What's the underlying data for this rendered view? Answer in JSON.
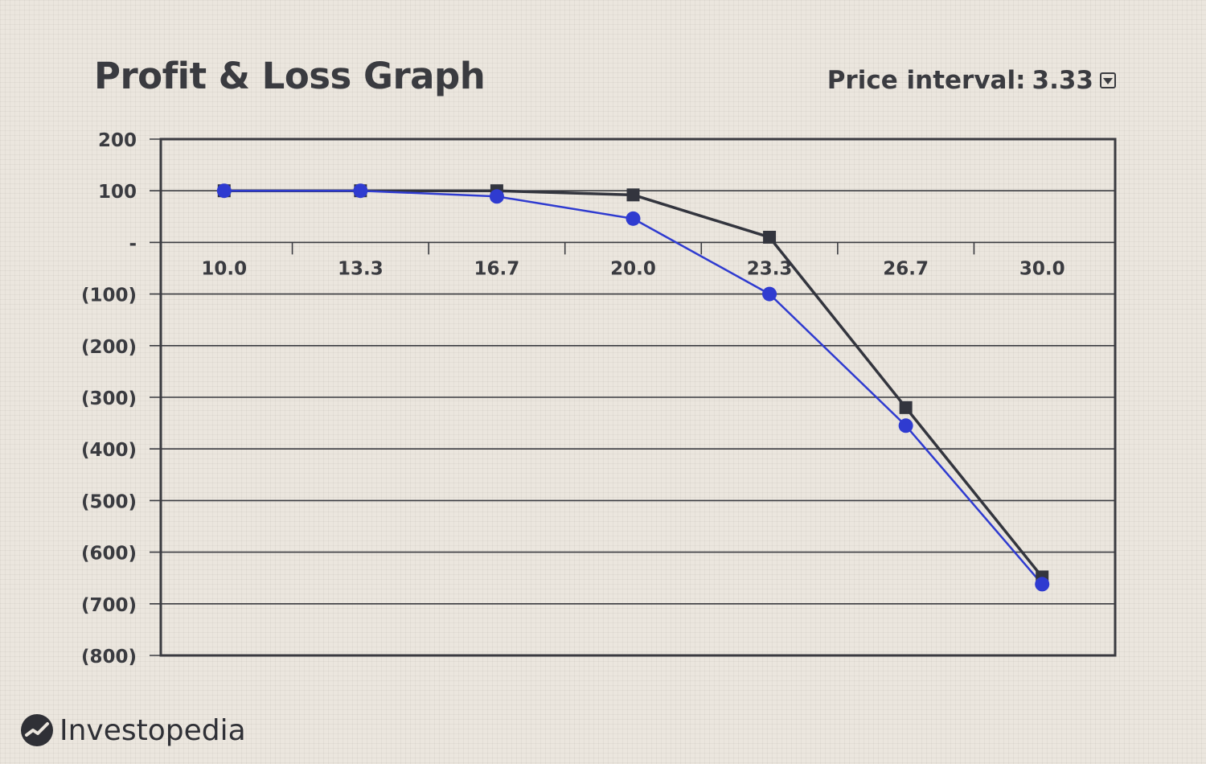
{
  "title": "Profit & Loss Graph",
  "controls": {
    "interval_label": "Price interval:",
    "interval_value": "3.33"
  },
  "brand": {
    "name": "Investopedia"
  },
  "colors": {
    "series_dark": "#33353e",
    "series_blue": "#2f3bd0",
    "grid": "#3a3b40"
  },
  "chart_data": {
    "type": "line",
    "title": "",
    "xlabel": "",
    "ylabel": "",
    "categories": [
      "10.0",
      "13.3",
      "16.7",
      "20.0",
      "23.3",
      "26.7",
      "30.0"
    ],
    "y_ticks": [
      200,
      100,
      0,
      -100,
      -200,
      -300,
      -400,
      -500,
      -600,
      -700,
      -800
    ],
    "y_tick_labels": [
      "200",
      "100",
      "-",
      "(100)",
      "(200)",
      "(300)",
      "(400)",
      "(500)",
      "(600)",
      "(700)",
      "(800)"
    ],
    "ylim": [
      -800,
      200
    ],
    "grid": true,
    "legend": "none",
    "series": [
      {
        "marker": "square",
        "color": "#33353e",
        "values": [
          100,
          100,
          100,
          92,
          10,
          -320,
          -648
        ]
      },
      {
        "marker": "circle",
        "color": "#2f3bd0",
        "values": [
          100,
          100,
          89,
          46,
          -100,
          -355,
          -662
        ]
      }
    ]
  }
}
